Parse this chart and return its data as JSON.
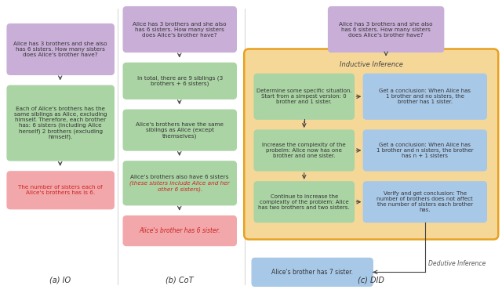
{
  "colors": {
    "purple_box": "#c9afd8",
    "green_box": "#aad4a4",
    "red_box": "#f2a8aa",
    "blue_box": "#a8c8e8",
    "orange_bg": "#f5d898",
    "orange_border": "#e8a020",
    "arrow": "#444444",
    "text_dark": "#333333",
    "text_red": "#cc2222",
    "divider": "#cccccc"
  },
  "labels": {
    "io": "(a) IO",
    "cot": "(b) CoT",
    "did": "(c) DID",
    "inductive": "Inductive Inference",
    "deductive": "Dedutive Inference"
  }
}
